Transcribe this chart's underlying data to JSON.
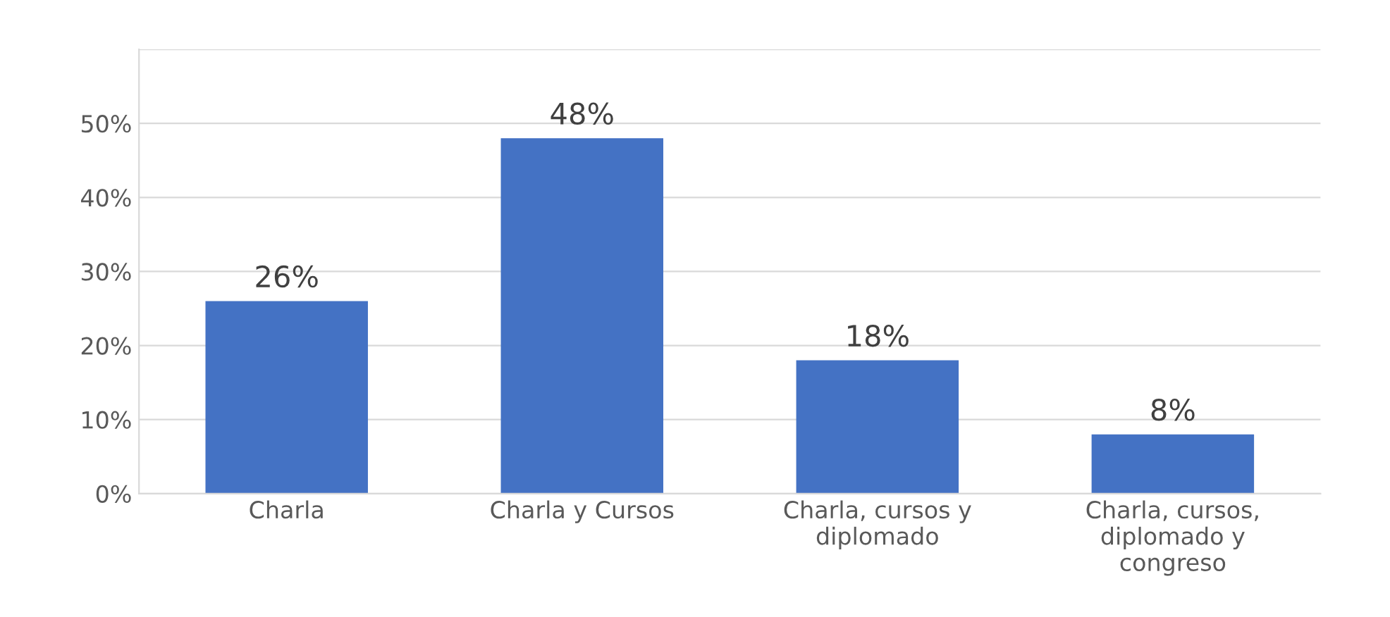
{
  "chart_data": {
    "type": "bar",
    "categories": [
      "Charla",
      "Charla y Cursos",
      "Charla, cursos y\ndiplomado",
      "Charla, cursos,\ndiplomado y\ncongreso"
    ],
    "values": [
      26,
      48,
      18,
      8
    ],
    "color": "#4472c4",
    "value_labels": [
      "26%",
      "48%",
      "18%",
      "8%"
    ],
    "ylim": [
      0,
      60
    ],
    "yticks": [
      {
        "value": 0,
        "label": "0%"
      },
      {
        "value": 10,
        "label": "10%"
      },
      {
        "value": 20,
        "label": "20%"
      },
      {
        "value": 30,
        "label": "30%"
      },
      {
        "value": 40,
        "label": "40%"
      },
      {
        "value": 50,
        "label": "50%"
      },
      {
        "value": 60,
        "label": null
      }
    ],
    "grid": "y"
  }
}
